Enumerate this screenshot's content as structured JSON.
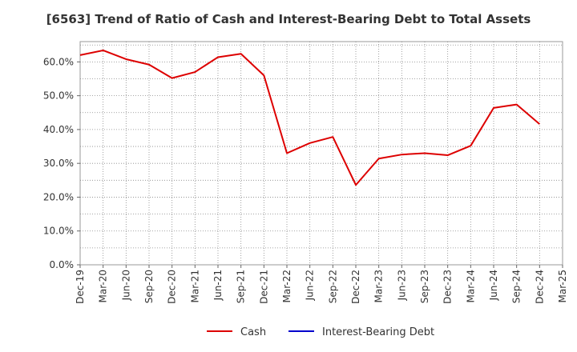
{
  "chart_data": {
    "type": "line",
    "title": "[6563]  Trend of Ratio of Cash and Interest-Bearing Debt to Total Assets",
    "xlabel": "",
    "ylabel": "",
    "categories": [
      "Dec-19",
      "Mar-20",
      "Jun-20",
      "Sep-20",
      "Dec-20",
      "Mar-21",
      "Jun-21",
      "Sep-21",
      "Dec-21",
      "Mar-22",
      "Jun-22",
      "Sep-22",
      "Dec-22",
      "Mar-23",
      "Jun-23",
      "Sep-23",
      "Dec-23",
      "Mar-24",
      "Jun-24",
      "Sep-24",
      "Dec-24",
      "Mar-25"
    ],
    "y_ticks": [
      "0.0%",
      "10.0%",
      "20.0%",
      "30.0%",
      "40.0%",
      "50.0%",
      "60.0%"
    ],
    "ylim": [
      0,
      66
    ],
    "grid": true,
    "series": [
      {
        "name": "Cash",
        "color": "#dd0000",
        "values": [
          62.0,
          63.4,
          60.8,
          59.2,
          55.2,
          57.0,
          61.4,
          62.4,
          56.0,
          33.0,
          36.0,
          37.8,
          23.6,
          31.4,
          32.6,
          33.0,
          32.4,
          35.2,
          46.4,
          47.4,
          41.6,
          null
        ]
      },
      {
        "name": "Interest-Bearing Debt",
        "color": "#0000cc",
        "values": [
          null,
          null,
          null,
          null,
          null,
          null,
          null,
          null,
          null,
          null,
          null,
          null,
          null,
          null,
          null,
          null,
          null,
          null,
          null,
          null,
          null,
          null
        ]
      }
    ]
  }
}
